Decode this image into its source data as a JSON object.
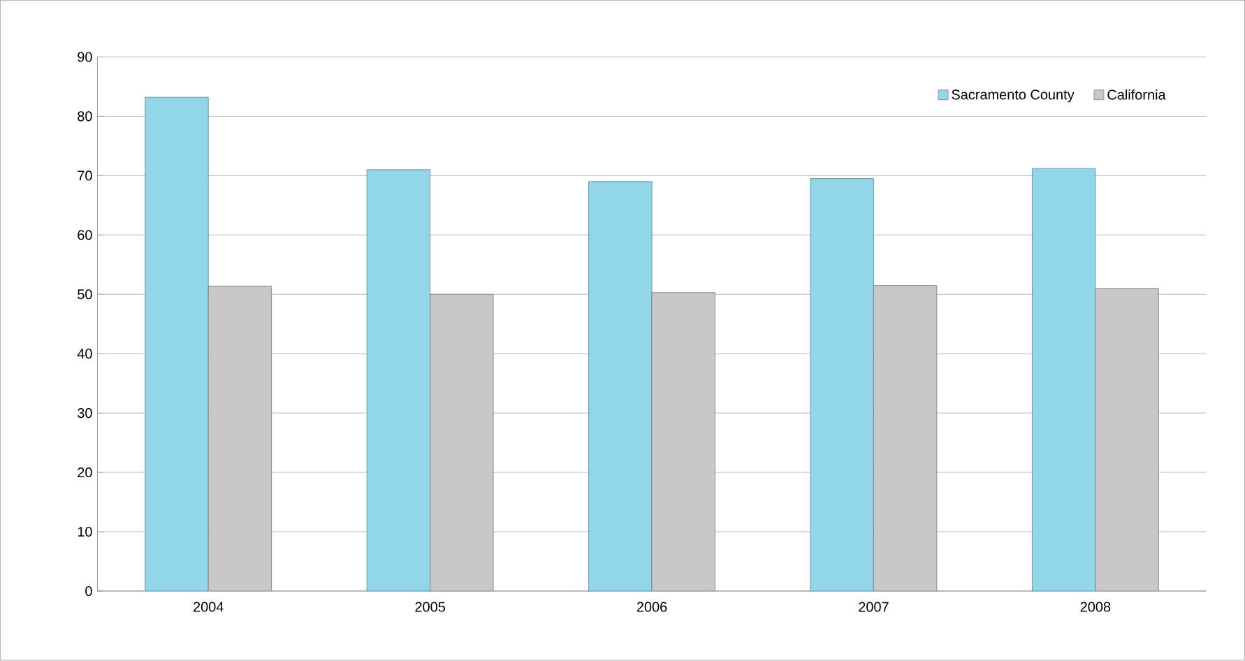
{
  "chart_data": {
    "type": "bar",
    "categories": [
      "2004",
      "2005",
      "2006",
      "2007",
      "2008"
    ],
    "series": [
      {
        "name": "Sacramento County",
        "color": "#93d6ea",
        "values": [
          83.2,
          71,
          69,
          69.5,
          71.2
        ]
      },
      {
        "name": "California",
        "color": "#c8c8c8",
        "values": [
          51.4,
          50,
          50.3,
          51.5,
          51
        ]
      }
    ],
    "ylim": [
      0,
      90
    ],
    "yticks": [
      0,
      10,
      20,
      30,
      40,
      50,
      60,
      70,
      80,
      90
    ],
    "grid": "y",
    "legend": "top right"
  }
}
